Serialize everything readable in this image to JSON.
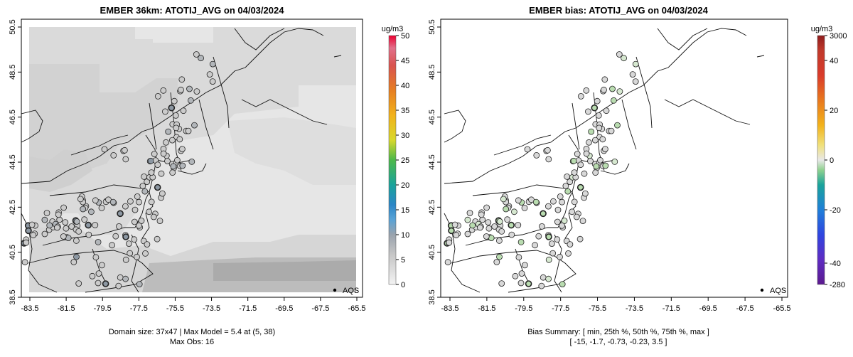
{
  "left_panel": {
    "title": "EMBER 36km: ATOTIJ_AVG on 04/03/2024",
    "x_ticks": [
      "-83.5",
      "-81.5",
      "-79.5",
      "-77.5",
      "-75.5",
      "-73.5",
      "-71.5",
      "-69.5",
      "-67.5",
      "-65.5"
    ],
    "y_ticks": [
      "38.5",
      "40.5",
      "42.5",
      "44.5",
      "46.5",
      "48.5",
      "50.5"
    ],
    "legend_label": "AQS",
    "colorbar_unit": "ug/m3",
    "colorbar_ticks": [
      "0",
      "5",
      "10",
      "15",
      "20",
      "25",
      "30",
      "35",
      "40",
      "45",
      "50"
    ],
    "caption_line1": "Domain size: 37x47 | Max Model = 5.4 at (5, 38)",
    "caption_line2": "Max Obs: 16"
  },
  "right_panel": {
    "title": "EMBER bias: ATOTIJ_AVG on 04/03/2024",
    "x_ticks": [
      "-83.5",
      "-81.5",
      "-79.5",
      "-77.5",
      "-75.5",
      "-73.5",
      "-71.5",
      "-69.5",
      "-67.5",
      "-65.5"
    ],
    "y_ticks": [
      "38.5",
      "40.5",
      "42.5",
      "44.5",
      "46.5",
      "48.5",
      "50.5"
    ],
    "legend_label": "AQS",
    "colorbar_unit": "ug/m3",
    "colorbar_ticks": [
      "3000",
      "40",
      "20",
      "0",
      "-20",
      "-40",
      "-280"
    ],
    "caption_line1": "Bias Summary: [ min, 25th %, 50th %, 75th %, max ]",
    "caption_line2": "[ -15,   -1.7,   -0.73,   -0.23,   3.5 ]"
  },
  "colors": {
    "conc_scale": [
      "#f0f0f0",
      "#c8c8c8",
      "#9aa3ad",
      "#5a9fd4",
      "#2f7fc0",
      "#1aa39b",
      "#33b24a",
      "#d9d92b",
      "#f2b21b",
      "#e67e22",
      "#d9534f",
      "#e0607a",
      "#e8003a"
    ],
    "bias_scale": [
      "#6a1b9a",
      "#3f3fd9",
      "#1f6fe0",
      "#1aa39b",
      "#8fd18f",
      "#e6e6e6",
      "#f2e08a",
      "#f2b21b",
      "#e87a1e",
      "#d63a2a",
      "#9b1a1a"
    ],
    "model_field_light": "#e6e6e6",
    "model_field_mid": "#d4d4d4",
    "model_field_dark": "#aeaeae",
    "site_gray": "#c9c9c9",
    "site_green": "#b9dcb0"
  }
}
